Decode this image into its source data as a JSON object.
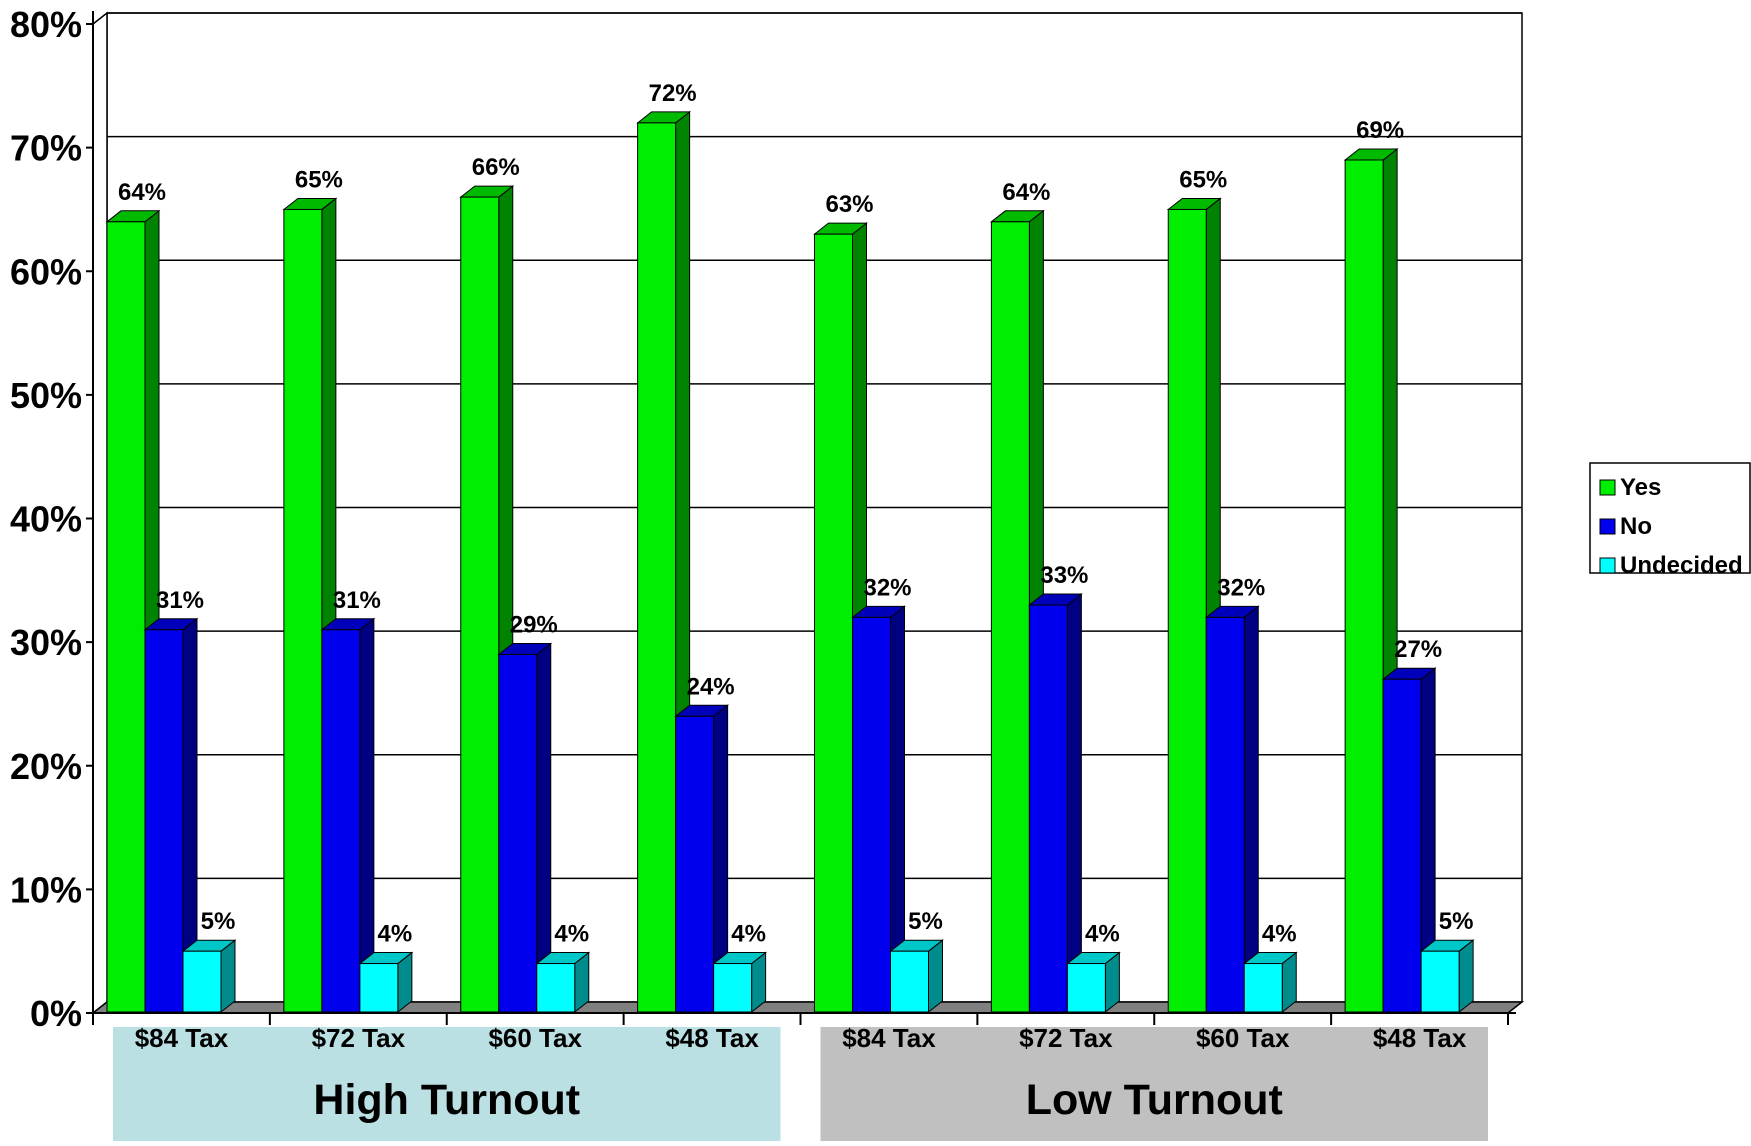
{
  "chart_data": {
    "type": "bar",
    "groups": [
      {
        "label": "High Turnout",
        "categories": [
          "$84 Tax",
          "$72 Tax",
          "$60 Tax",
          "$48 Tax"
        ]
      },
      {
        "label": "Low Turnout",
        "categories": [
          "$84 Tax",
          "$72 Tax",
          "$60 Tax",
          "$48 Tax"
        ]
      }
    ],
    "categories": [
      "$84 Tax",
      "$72 Tax",
      "$60 Tax",
      "$48 Tax",
      "$84 Tax",
      "$72 Tax",
      "$60 Tax",
      "$48 Tax"
    ],
    "series": [
      {
        "name": "Yes",
        "color": "#00ee00",
        "values": [
          64,
          65,
          66,
          72,
          63,
          64,
          65,
          69
        ]
      },
      {
        "name": "No",
        "color": "#0000ee",
        "values": [
          31,
          31,
          29,
          24,
          32,
          33,
          32,
          27
        ]
      },
      {
        "name": "Undecided",
        "color": "#00ffff",
        "values": [
          5,
          4,
          4,
          4,
          5,
          4,
          4,
          5
        ]
      }
    ],
    "data_labels": [
      [
        "64%",
        "65%",
        "66%",
        "72%",
        "63%",
        "64%",
        "65%",
        "69%"
      ],
      [
        "31%",
        "31%",
        "29%",
        "24%",
        "32%",
        "33%",
        "32%",
        "27%"
      ],
      [
        "5%",
        "4%",
        "4%",
        "4%",
        "5%",
        "4%",
        "4%",
        "5%"
      ]
    ],
    "y_ticks": [
      "0%",
      "10%",
      "20%",
      "30%",
      "40%",
      "50%",
      "60%",
      "70%",
      "80%"
    ],
    "ylim": [
      0,
      80
    ],
    "grid": true,
    "legend_position": "right",
    "group_band_colors": [
      "#bbe0e3",
      "#c0c0c0"
    ]
  }
}
